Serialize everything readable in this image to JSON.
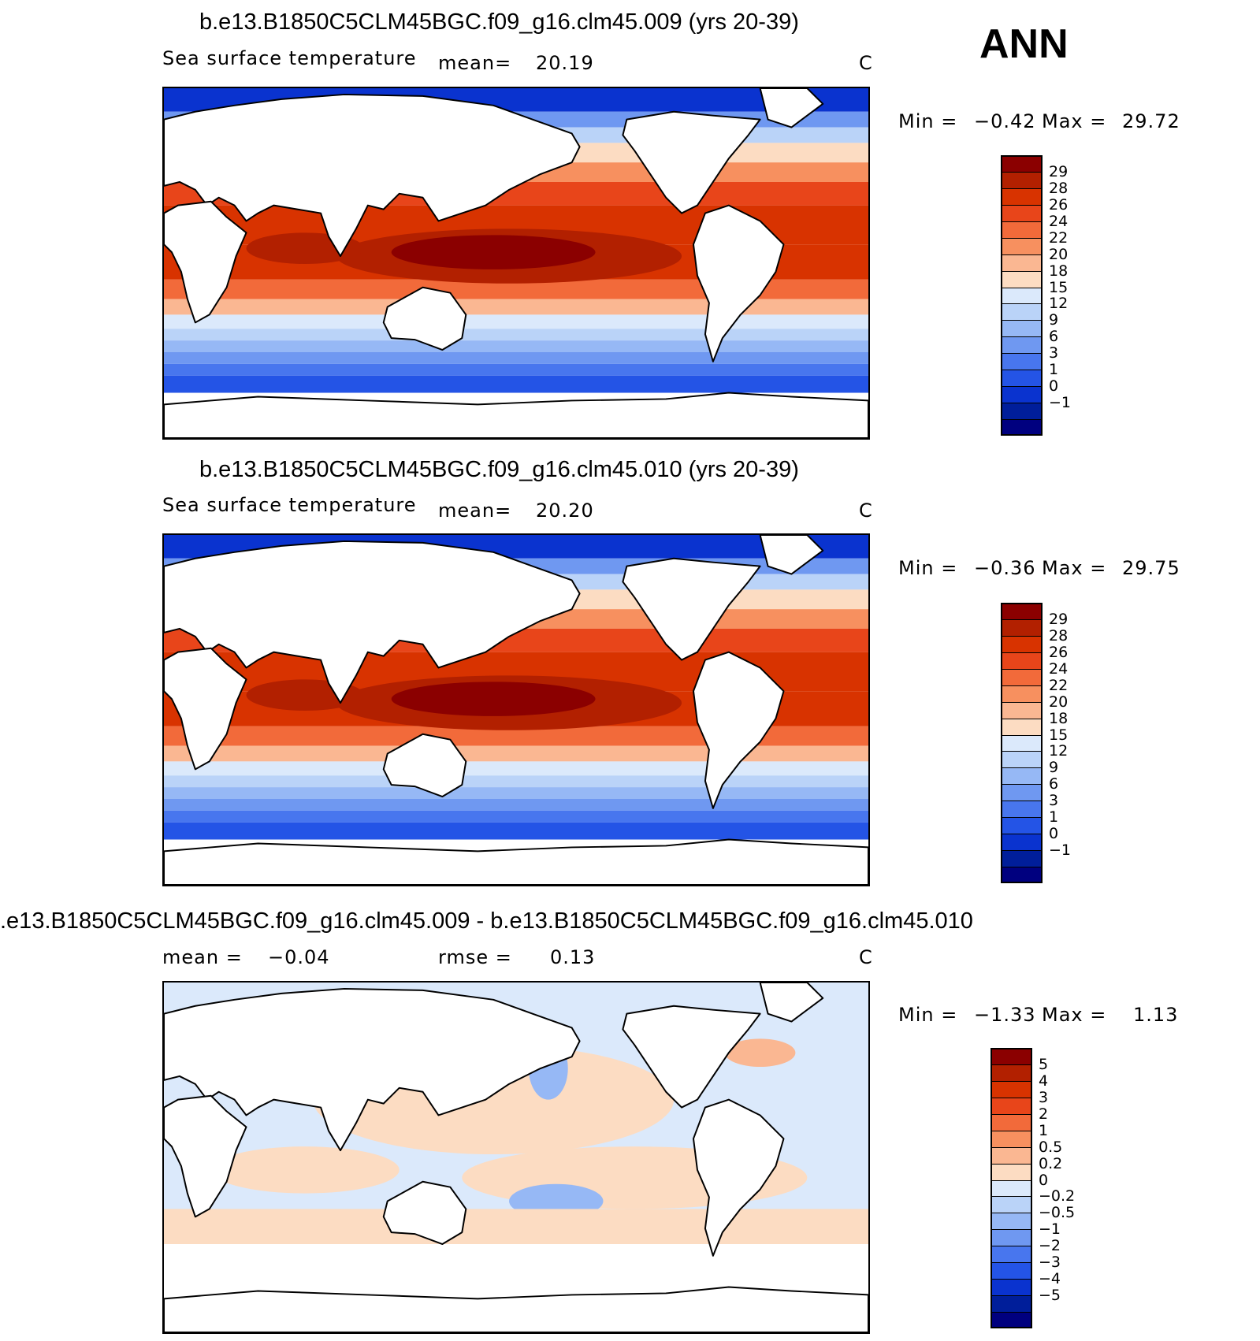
{
  "season": "ANN",
  "panels": [
    {
      "title": "b.e13.B1850C5CLM45BGC.f09_g16.clm45.009 (yrs 20-39)",
      "variable": "Sea surface temperature",
      "stat1_label": "mean=",
      "stat1_value": "20.19",
      "stat2_label": "",
      "stat2_value": "",
      "units": "C",
      "min_label": "Min =",
      "min_value": "−0.42",
      "max_label": "Max =",
      "max_value": "29.72"
    },
    {
      "title": "b.e13.B1850C5CLM45BGC.f09_g16.clm45.010 (yrs 20-39)",
      "variable": "Sea surface temperature",
      "stat1_label": "mean=",
      "stat1_value": "20.20",
      "stat2_label": "",
      "stat2_value": "",
      "units": "C",
      "min_label": "Min =",
      "min_value": "−0.36",
      "max_label": "Max =",
      "max_value": "29.75"
    },
    {
      "title": ".e13.B1850C5CLM45BGC.f09_g16.clm45.009 - b.e13.B1850C5CLM45BGC.f09_g16.clm45.010",
      "variable": "",
      "stat1_label": "mean =",
      "stat1_value": "−0.04",
      "stat2_label": "rmse =",
      "stat2_value": "0.13",
      "units": "C",
      "min_label": "Min =",
      "min_value": "−1.33",
      "max_label": "Max =",
      "max_value": "1.13"
    }
  ],
  "chart_data": [
    {
      "type": "heatmap",
      "title": "b.e13.B1850C5CLM45BGC.f09_g16.clm45.009 (yrs 20-39)",
      "field": "Sea surface temperature",
      "units": "C",
      "mean": 20.19,
      "min": -0.42,
      "max": 29.72,
      "contour_levels": [
        "29",
        "28",
        "26",
        "24",
        "22",
        "20",
        "18",
        "15",
        "12",
        "9",
        "6",
        "3",
        "1",
        "0",
        "−1"
      ],
      "colors": [
        "#8b0000",
        "#b22000",
        "#d83300",
        "#e8451a",
        "#f26a3a",
        "#f7905f",
        "#fab792",
        "#fcdcc2",
        "#dbe9fb",
        "#bad3f8",
        "#96b8f5",
        "#6f98f1",
        "#4876ee",
        "#2454e6",
        "#0a33cf",
        "#001e9a",
        "#00007f"
      ],
      "lon_range": [
        30,
        390
      ],
      "lat_range": [
        -90,
        90
      ]
    },
    {
      "type": "heatmap",
      "title": "b.e13.B1850C5CLM45BGC.f09_g16.clm45.010 (yrs 20-39)",
      "field": "Sea surface temperature",
      "units": "C",
      "mean": 20.2,
      "min": -0.36,
      "max": 29.75,
      "contour_levels": [
        "29",
        "28",
        "26",
        "24",
        "22",
        "20",
        "18",
        "15",
        "12",
        "9",
        "6",
        "3",
        "1",
        "0",
        "−1"
      ],
      "colors": [
        "#8b0000",
        "#b22000",
        "#d83300",
        "#e8451a",
        "#f26a3a",
        "#f7905f",
        "#fab792",
        "#fcdcc2",
        "#dbe9fb",
        "#bad3f8",
        "#96b8f5",
        "#6f98f1",
        "#4876ee",
        "#2454e6",
        "#0a33cf",
        "#001e9a",
        "#00007f"
      ],
      "lon_range": [
        30,
        390
      ],
      "lat_range": [
        -90,
        90
      ]
    },
    {
      "type": "heatmap",
      "title": ".e13.B1850C5CLM45BGC.f09_g16.clm45.009 - b.e13.B1850C5CLM45BGC.f09_g16.clm45.010",
      "units": "C",
      "mean": -0.04,
      "rmse": 0.13,
      "min": -1.33,
      "max": 1.13,
      "contour_levels": [
        "5",
        "4",
        "3",
        "2",
        "1",
        "0.5",
        "0.2",
        "0",
        "−0.2",
        "−0.5",
        "−1",
        "−2",
        "−3",
        "−4",
        "−5"
      ],
      "colors": [
        "#8b0000",
        "#b22000",
        "#d83300",
        "#e8451a",
        "#f26a3a",
        "#f7905f",
        "#fab792",
        "#fcdcc2",
        "#dbe9fb",
        "#bad3f8",
        "#96b8f5",
        "#6f98f1",
        "#4876ee",
        "#2454e6",
        "#0a33cf",
        "#001e9a",
        "#00007f"
      ],
      "lon_range": [
        30,
        390
      ],
      "lat_range": [
        -90,
        90
      ]
    }
  ]
}
